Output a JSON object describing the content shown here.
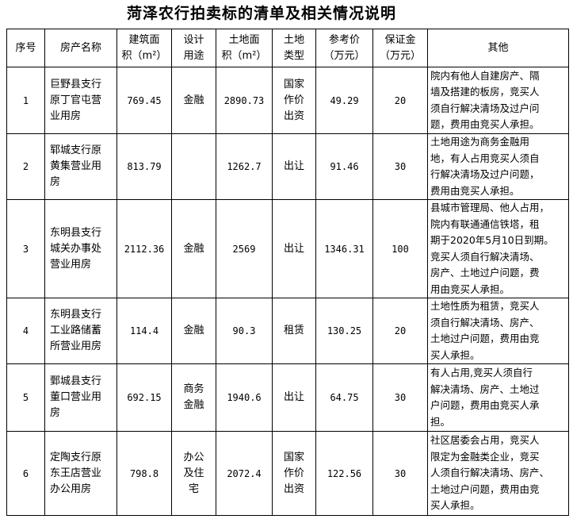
{
  "title": "菏泽农行拍卖标的清单及相关情况说明",
  "headers": [
    "序号",
    "房产名称",
    "建筑面\n积（m²）",
    "设计\n用途",
    "土地面\n积（m²）",
    "土地\n类型",
    "参考价\n（万元）",
    "保证金\n（万元）",
    "其他"
  ],
  "rows": [
    {
      "no": "1",
      "name": "巨野县支行\n原丁官屯营\n业用房",
      "building_area": "769.45",
      "usage": "金融",
      "land_area": "2890.73",
      "land_type": "国家\n作价\n出资",
      "price": "49.29",
      "deposit": "20",
      "note": "院内有他人自建房产、隔\n墙及搭建的板房，竞买人\n须自行解决清场及过户问\n题，费用由竞买人承担。"
    },
    {
      "no": "2",
      "name": "郓城支行原\n黄集营业用\n房",
      "building_area": "813.79",
      "usage": "",
      "land_area": "1262.7",
      "land_type": "出让",
      "price": "91.46",
      "deposit": "30",
      "note": "土地用途为商务金融用\n地，有人占用竞买人须自\n行解决清场及过户问题，\n费用由竞买人承担。"
    },
    {
      "no": "3",
      "name": "东明县支行\n城关办事处\n营业用房",
      "building_area": "2112.36",
      "usage": "金融",
      "land_area": "2569",
      "land_type": "出让",
      "price": "1346.31",
      "deposit": "100",
      "note": "县城市管理局、他人占用，\n院内有联通通信铁塔，租\n期于2020年5月10日到期。\n竞买人须自行解决清场、\n房产、土地过户问题，费\n用由竞买人承担。"
    },
    {
      "no": "4",
      "name": "东明县支行\n工业路储蓄\n所营业用房",
      "building_area": "114.4",
      "usage": "金融",
      "land_area": "90.3",
      "land_type": "租赁",
      "price": "130.25",
      "deposit": "20",
      "note": "土地性质为租赁，竞买人\n须自行解决清场、房产、\n土地过户问题，费用由竞\n买人承担。"
    },
    {
      "no": "5",
      "name": "鄄城县支行\n董口营业用\n房",
      "building_area": "692.15",
      "usage": "商务\n金融",
      "land_area": "1940.6",
      "land_type": "出让",
      "price": "64.75",
      "deposit": "30",
      "note": "有人占用,竞买人须自行\n解决清场、房产、土地过\n户问题，费用由竞买人承\n担。"
    },
    {
      "no": "6",
      "name": "定陶支行原\n东王店营业\n办公用房",
      "building_area": "798.8",
      "usage": "办公\n及住\n宅",
      "land_area": "2072.4",
      "land_type": "国家\n作价\n出资",
      "price": "122.56",
      "deposit": "30",
      "note": "社区居委会占用，竞买人\n限定为金融类企业，竞买\n人须自行解决清场、房产、\n土地过户问题，费用由竞\n买人承担。"
    }
  ]
}
